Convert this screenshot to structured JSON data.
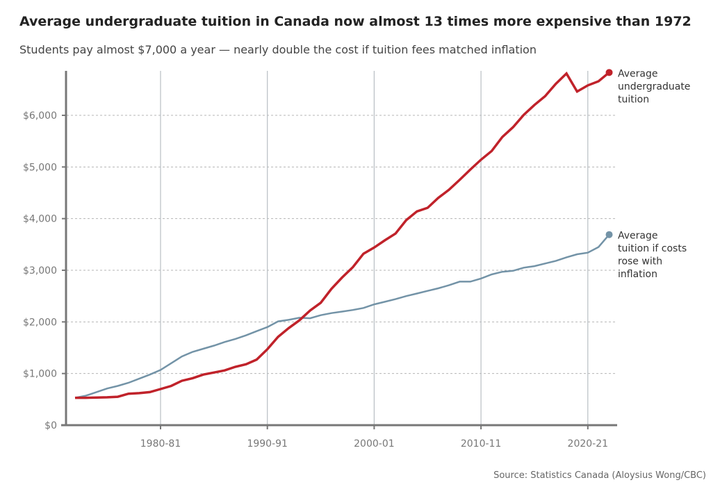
{
  "chart_data": {
    "type": "line",
    "title": "Average undergraduate tuition in Canada now almost 13 times more expensive than 1972",
    "subtitle": "Students pay almost $7,000 a year — nearly double the cost if tuition fees matched inflation",
    "source": "Source: Statistics Canada (Aloysius Wong/CBC)",
    "xlabel": "",
    "ylabel": "",
    "xlim": [
      1971,
      2024
    ],
    "ylim": [
      0,
      6900
    ],
    "yticks": [
      0,
      1000,
      2000,
      3000,
      4000,
      5000,
      6000
    ],
    "ytick_labels": [
      "$0",
      "$1,000",
      "$2,000",
      "$3,000",
      "$4,000",
      "$5,000",
      "$6,000"
    ],
    "xticks": [
      1980,
      1990,
      2000,
      2010,
      2020
    ],
    "xtick_labels": [
      "1980-81",
      "1990-91",
      "2000-01",
      "2010-11",
      "2020-21"
    ],
    "grid": true,
    "x": [
      1972,
      1973,
      1974,
      1975,
      1976,
      1977,
      1978,
      1979,
      1980,
      1981,
      1982,
      1983,
      1984,
      1985,
      1986,
      1987,
      1988,
      1989,
      1990,
      1991,
      1992,
      1993,
      1994,
      1995,
      1996,
      1997,
      1998,
      1999,
      2000,
      2001,
      2002,
      2003,
      2004,
      2005,
      2006,
      2007,
      2008,
      2009,
      2010,
      2011,
      2012,
      2013,
      2014,
      2015,
      2016,
      2017,
      2018,
      2019,
      2020,
      2021,
      2022
    ],
    "series": [
      {
        "name": "Average undergraduate tuition",
        "label_lines": [
          "Average",
          "undergraduate",
          "tuition"
        ],
        "color": "#c0222a",
        "width": 3.5,
        "values": [
          530,
          530,
          535,
          540,
          550,
          610,
          620,
          640,
          700,
          760,
          860,
          910,
          980,
          1020,
          1060,
          1130,
          1180,
          1270,
          1470,
          1710,
          1880,
          2030,
          2220,
          2370,
          2640,
          2860,
          3060,
          3320,
          3440,
          3580,
          3710,
          3970,
          4140,
          4210,
          4400,
          4560,
          4750,
          4950,
          5140,
          5310,
          5580,
          5770,
          6010,
          6200,
          6370,
          6610,
          6810,
          6460,
          6580,
          6660,
          6830
        ]
      },
      {
        "name": "Average tuition if costs rose with inflation",
        "label_lines": [
          "Average",
          "tuition if costs",
          "rose with",
          "inflation"
        ],
        "color": "#7393a7",
        "width": 2.5,
        "values": [
          530,
          570,
          640,
          710,
          760,
          820,
          900,
          980,
          1070,
          1200,
          1330,
          1420,
          1480,
          1540,
          1610,
          1670,
          1740,
          1820,
          1900,
          2010,
          2040,
          2080,
          2070,
          2130,
          2170,
          2200,
          2230,
          2270,
          2340,
          2390,
          2440,
          2500,
          2550,
          2600,
          2650,
          2710,
          2780,
          2780,
          2840,
          2920,
          2970,
          2990,
          3050,
          3080,
          3130,
          3180,
          3250,
          3310,
          3340,
          3450,
          3690
        ]
      }
    ]
  }
}
